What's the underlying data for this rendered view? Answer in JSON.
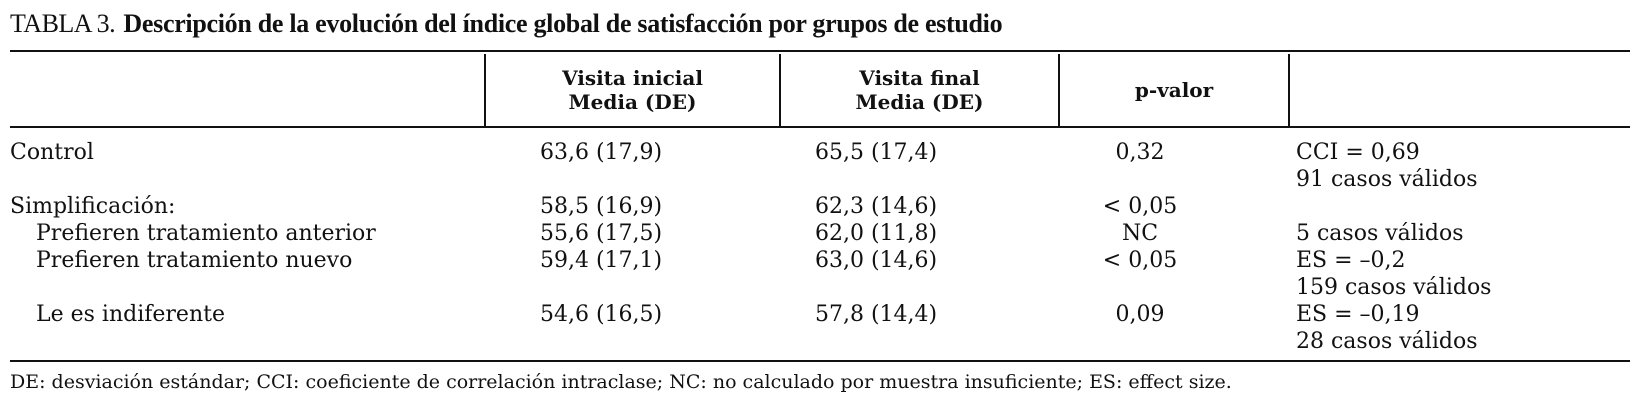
{
  "caption": {
    "label": "TABLA 3.",
    "title": "Descripción de la evolución del índice global de satisfacción por grupos de estudio"
  },
  "header": {
    "col_group": "",
    "col_inicial_1": "Visita inicial",
    "col_inicial_2": "Media (DE)",
    "col_final_1": "Visita final",
    "col_final_2": "Media (DE)",
    "col_p": "p-valor",
    "col_notes": ""
  },
  "rows": [
    {
      "group": "Control",
      "inicial": "63,6 (17,9)",
      "final": "65,5 (17,4)",
      "p": "0,32",
      "note1": "CCI = 0,69",
      "note2": "91 casos válidos"
    },
    {
      "group": "Simplificación:",
      "inicial": "58,5 (16,9)",
      "final": "62,3 (14,6)",
      "p": "< 0,05",
      "note1": "",
      "note2": ""
    },
    {
      "group": "Prefieren tratamiento anterior",
      "inicial": "55,6 (17,5)",
      "final": "62,0 (11,8)",
      "p": "NC",
      "note1": "5 casos válidos",
      "note2": ""
    },
    {
      "group": "Prefieren tratamiento nuevo",
      "inicial": "59,4 (17,1)",
      "final": "63,0 (14,6)",
      "p": "< 0,05",
      "note1": "ES = –0,2",
      "note2": "159 casos válidos"
    },
    {
      "group": "Le es indiferente",
      "inicial": "54,6 (16,5)",
      "final": "57,8 (14,4)",
      "p": "0,09",
      "note1": "ES = –0,19",
      "note2": "28 casos válidos"
    }
  ],
  "footnote": "DE: desviación estándar; CCI: coeficiente de correlación intraclase; NC: no calculado por muestra insuficiente; ES: effect size."
}
